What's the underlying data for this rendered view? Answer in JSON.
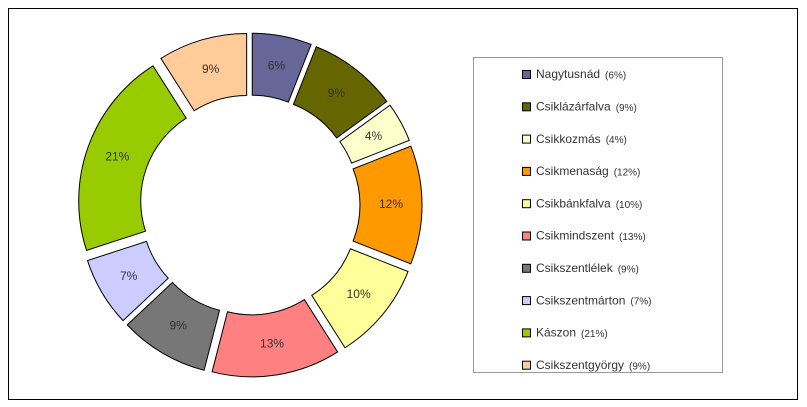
{
  "chart_data": {
    "type": "donut",
    "categories": [
      "Nagytusnád",
      "Csiklázárfalva",
      "Csikkozmás",
      "Csikmenaság",
      "Csikbánkfalva",
      "Csikmindszent",
      "Csikszentlélek",
      "Csikszentmárton",
      "Kászon",
      "Csikszentgyörgy"
    ],
    "values": [
      6,
      9,
      4,
      12,
      10,
      13,
      9,
      7,
      21,
      9
    ],
    "value_labels": [
      "6%",
      "9%",
      "4%",
      "12%",
      "10%",
      "13%",
      "9%",
      "7%",
      "21%",
      "9%"
    ],
    "legend_labels": [
      "(6%)",
      "(9%)",
      "(4%)",
      "(12%)",
      "(10%)",
      "(13%)",
      "(9%)",
      "(7%)",
      "(21%)",
      "(9%)"
    ],
    "colors": [
      "#666699",
      "#666600",
      "#ffffcc",
      "#ff9900",
      "#ffff99",
      "#ff8080",
      "#777777",
      "#ccccff",
      "#99cc00",
      "#ffcc99"
    ],
    "legend": "right"
  }
}
